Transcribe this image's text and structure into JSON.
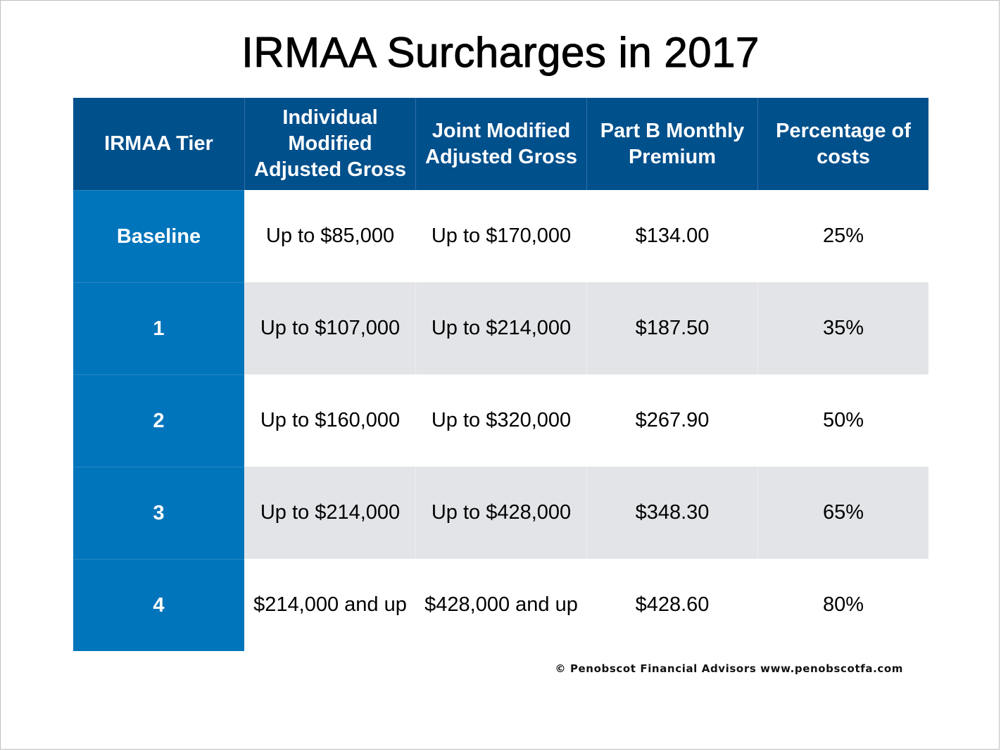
{
  "title": "IRMAA Surcharges in 2017",
  "table": {
    "headers": [
      "IRMAA Tier",
      "Individual Modified Adjusted Gross",
      "Joint Modified Adjusted Gross",
      "Part B Monthly Premium",
      "Percentage of costs"
    ],
    "rows": [
      {
        "tier": "Baseline",
        "individual": "Up to $85,000",
        "joint": "Up to $170,000",
        "premium": "$134.00",
        "percentage": "25%"
      },
      {
        "tier": "1",
        "individual": "Up to $107,000",
        "joint": "Up to $214,000",
        "premium": "$187.50",
        "percentage": "35%"
      },
      {
        "tier": "2",
        "individual": "Up to $160,000",
        "joint": "Up to $320,000",
        "premium": "$267.90",
        "percentage": "50%"
      },
      {
        "tier": "3",
        "individual": "Up to $214,000",
        "joint": "Up to $428,000",
        "premium": "$348.30",
        "percentage": "65%"
      },
      {
        "tier": "4",
        "individual": "$214,000 and up",
        "joint": "$428,000 and up",
        "premium": "$428.60",
        "percentage": "80%"
      }
    ]
  },
  "footer": "© Penobscot Financial Advisors www.penobscotfa.com",
  "colors": {
    "header_bg": "#00508c",
    "tier_bg": "#0075bb",
    "row_alt_bg": "#e3e4e8",
    "text_light": "#ffffff",
    "text_dark": "#000000"
  }
}
